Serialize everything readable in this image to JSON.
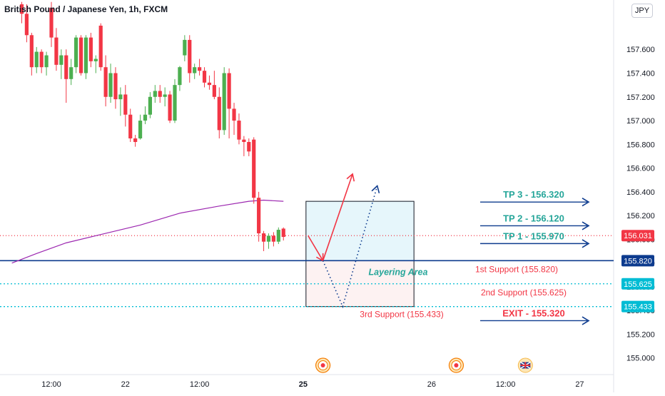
{
  "header": {
    "title": "British Pound / Japanese Yen, 1h, FXCM",
    "currency_badge": "JPY"
  },
  "chart_data": {
    "type": "candlestick",
    "symbol": "British Pound / Japanese Yen",
    "interval": "1h",
    "source": "FXCM",
    "y_axis": {
      "range": [
        154.86,
        157.92
      ],
      "ticks": [
        "157.600",
        "157.400",
        "157.200",
        "157.000",
        "156.800",
        "156.600",
        "156.400",
        "156.200",
        "156.000",
        "155.800",
        "155.600",
        "155.400",
        "155.200",
        "155.000"
      ]
    },
    "x_axis": {
      "ticks": [
        {
          "label": "12:00",
          "bar": 0
        },
        {
          "label": "22",
          "bar": 15
        },
        {
          "label": "12:00",
          "bar": 30
        },
        {
          "label": "25",
          "bar": 51
        },
        {
          "label": "26",
          "bar": 77
        },
        {
          "label": "12:00",
          "bar": 92
        },
        {
          "label": "27",
          "bar": 107
        }
      ]
    },
    "candles": [
      {
        "bar": -6,
        "o": 157.98,
        "h": 158.0,
        "l": 157.82,
        "c": 157.9
      },
      {
        "bar": -5,
        "o": 157.9,
        "h": 157.98,
        "l": 157.66,
        "c": 157.72
      },
      {
        "bar": -4,
        "o": 157.72,
        "h": 157.74,
        "l": 157.38,
        "c": 157.45
      },
      {
        "bar": -3,
        "o": 157.45,
        "h": 157.62,
        "l": 157.4,
        "c": 157.58
      },
      {
        "bar": -2,
        "o": 157.58,
        "h": 157.6,
        "l": 157.4,
        "c": 157.45
      },
      {
        "bar": -1,
        "o": 157.45,
        "h": 157.58,
        "l": 157.38,
        "c": 157.55
      },
      {
        "bar": 0,
        "o": 157.95,
        "h": 158.0,
        "l": 157.62,
        "c": 157.7
      },
      {
        "bar": 1,
        "o": 157.7,
        "h": 157.78,
        "l": 157.42,
        "c": 157.47
      },
      {
        "bar": 2,
        "o": 157.47,
        "h": 157.6,
        "l": 157.35,
        "c": 157.55
      },
      {
        "bar": 3,
        "o": 157.55,
        "h": 157.6,
        "l": 157.15,
        "c": 157.35
      },
      {
        "bar": 4,
        "o": 157.35,
        "h": 157.52,
        "l": 157.3,
        "c": 157.45
      },
      {
        "bar": 5,
        "o": 157.45,
        "h": 157.72,
        "l": 157.4,
        "c": 157.7
      },
      {
        "bar": 6,
        "o": 157.7,
        "h": 157.72,
        "l": 157.38,
        "c": 157.4
      },
      {
        "bar": 7,
        "o": 157.4,
        "h": 157.72,
        "l": 157.35,
        "c": 157.7
      },
      {
        "bar": 8,
        "o": 157.7,
        "h": 157.74,
        "l": 157.45,
        "c": 157.5
      },
      {
        "bar": 9,
        "o": 157.5,
        "h": 157.55,
        "l": 157.4,
        "c": 157.52
      },
      {
        "bar": 10,
        "o": 157.8,
        "h": 157.82,
        "l": 157.42,
        "c": 157.45
      },
      {
        "bar": 11,
        "o": 157.45,
        "h": 157.55,
        "l": 157.12,
        "c": 157.2
      },
      {
        "bar": 12,
        "o": 157.2,
        "h": 157.48,
        "l": 157.15,
        "c": 157.4
      },
      {
        "bar": 13,
        "o": 157.4,
        "h": 157.45,
        "l": 157.1,
        "c": 157.18
      },
      {
        "bar": 14,
        "o": 157.18,
        "h": 157.28,
        "l": 157.04,
        "c": 157.22
      },
      {
        "bar": 15,
        "o": 157.22,
        "h": 157.3,
        "l": 156.95,
        "c": 157.05
      },
      {
        "bar": 16,
        "o": 157.05,
        "h": 157.1,
        "l": 156.82,
        "c": 156.85
      },
      {
        "bar": 17,
        "o": 156.85,
        "h": 156.88,
        "l": 156.78,
        "c": 156.82
      },
      {
        "bar": 18,
        "o": 156.85,
        "h": 157.05,
        "l": 156.84,
        "c": 157.0
      },
      {
        "bar": 19,
        "o": 157.0,
        "h": 157.12,
        "l": 156.97,
        "c": 157.05
      },
      {
        "bar": 20,
        "o": 157.05,
        "h": 157.24,
        "l": 157.02,
        "c": 157.2
      },
      {
        "bar": 21,
        "o": 157.2,
        "h": 157.3,
        "l": 157.15,
        "c": 157.25
      },
      {
        "bar": 22,
        "o": 157.25,
        "h": 157.3,
        "l": 157.15,
        "c": 157.2
      },
      {
        "bar": 23,
        "o": 157.2,
        "h": 157.28,
        "l": 157.12,
        "c": 157.22
      },
      {
        "bar": 24,
        "o": 157.22,
        "h": 157.25,
        "l": 156.98,
        "c": 157.0
      },
      {
        "bar": 25,
        "o": 157.0,
        "h": 157.35,
        "l": 156.98,
        "c": 157.3
      },
      {
        "bar": 26,
        "o": 157.3,
        "h": 157.46,
        "l": 157.25,
        "c": 157.45
      },
      {
        "bar": 27,
        "o": 157.55,
        "h": 157.72,
        "l": 157.5,
        "c": 157.68
      },
      {
        "bar": 28,
        "o": 157.68,
        "h": 157.72,
        "l": 157.32,
        "c": 157.4
      },
      {
        "bar": 29,
        "o": 157.4,
        "h": 157.48,
        "l": 157.35,
        "c": 157.45
      },
      {
        "bar": 30,
        "o": 157.45,
        "h": 157.52,
        "l": 157.38,
        "c": 157.42
      },
      {
        "bar": 31,
        "o": 157.42,
        "h": 157.45,
        "l": 157.28,
        "c": 157.32
      },
      {
        "bar": 32,
        "o": 157.32,
        "h": 157.38,
        "l": 157.26,
        "c": 157.3
      },
      {
        "bar": 33,
        "o": 157.3,
        "h": 157.42,
        "l": 157.18,
        "c": 157.2
      },
      {
        "bar": 34,
        "o": 157.2,
        "h": 157.28,
        "l": 156.85,
        "c": 156.92
      },
      {
        "bar": 35,
        "o": 156.92,
        "h": 157.45,
        "l": 156.88,
        "c": 157.4
      },
      {
        "bar": 36,
        "o": 157.4,
        "h": 157.44,
        "l": 156.85,
        "c": 157.1
      },
      {
        "bar": 37,
        "o": 157.1,
        "h": 157.15,
        "l": 156.88,
        "c": 157.0
      },
      {
        "bar": 38,
        "o": 157.0,
        "h": 157.06,
        "l": 156.8,
        "c": 156.84
      },
      {
        "bar": 39,
        "o": 156.84,
        "h": 156.87,
        "l": 156.7,
        "c": 156.82
      },
      {
        "bar": 40,
        "o": 156.82,
        "h": 156.85,
        "l": 156.7,
        "c": 156.74
      },
      {
        "bar": 41,
        "o": 156.84,
        "h": 156.86,
        "l": 156.3,
        "c": 156.35
      },
      {
        "bar": 42,
        "o": 156.35,
        "h": 156.4,
        "l": 155.98,
        "c": 156.05
      },
      {
        "bar": 43,
        "o": 156.05,
        "h": 156.07,
        "l": 155.9,
        "c": 155.98
      },
      {
        "bar": 44,
        "o": 155.98,
        "h": 156.05,
        "l": 155.92,
        "c": 156.03
      },
      {
        "bar": 45,
        "o": 156.03,
        "h": 156.06,
        "l": 155.94,
        "c": 155.98
      },
      {
        "bar": 46,
        "o": 155.98,
        "h": 156.1,
        "l": 155.96,
        "c": 156.08
      },
      {
        "bar": 47,
        "o": 156.09,
        "h": 156.1,
        "l": 155.99,
        "c": 156.02
      }
    ],
    "moving_average": {
      "color": "#9c27b0",
      "points": [
        [
          -8,
          155.8
        ],
        [
          -3,
          155.88
        ],
        [
          3,
          155.97
        ],
        [
          10,
          156.04
        ],
        [
          18,
          156.12
        ],
        [
          26,
          156.22
        ],
        [
          34,
          156.28
        ],
        [
          40,
          156.32
        ],
        [
          43,
          156.33
        ],
        [
          47,
          156.32
        ]
      ]
    },
    "price_lines": [
      {
        "price": 156.031,
        "label": "156.031",
        "style": "dotted",
        "color": "#f23645"
      },
      {
        "price": 155.82,
        "label": "155.820",
        "style": "solid",
        "color": "#0d3b8e"
      },
      {
        "price": 155.625,
        "label": "155.625",
        "style": "dotted",
        "color": "#00bcd4"
      },
      {
        "price": 155.433,
        "label": "155.433",
        "style": "dotted",
        "color": "#00bcd4"
      }
    ],
    "zones": [
      {
        "name": "Layering Area",
        "from_bar": 52,
        "to_bar": 73,
        "top": 156.32,
        "mid": 155.82,
        "bottom": 155.433
      }
    ],
    "annotations": [
      {
        "text": "TP 3 - 156.320",
        "price": 156.32,
        "color": "#26a69a"
      },
      {
        "text": "TP 2 - 156.120",
        "price": 156.12,
        "color": "#26a69a"
      },
      {
        "text": "TP 1 - 155.970",
        "price": 155.97,
        "color": "#26a69a"
      },
      {
        "text": "1st Support (155.820)",
        "price": 155.82,
        "color": "#f23645"
      },
      {
        "text": "2nd Support (155.625)",
        "price": 155.625,
        "color": "#f23645"
      },
      {
        "text": "3rd Support (155.433)",
        "price": 155.433,
        "color": "#f23645"
      },
      {
        "text": "EXIT - 155.320",
        "price": 155.32,
        "color": "#f23645"
      },
      {
        "text": "Layering Area",
        "color": "#26a69a"
      }
    ],
    "arrows": {
      "tp_targets": [
        156.32,
        156.12,
        155.97,
        155.32
      ],
      "path_up": [
        [
          52,
          156.03
        ],
        [
          55,
          155.82
        ],
        [
          61,
          156.55
        ]
      ],
      "path_dotted": [
        [
          55,
          155.82
        ],
        [
          59,
          155.433
        ],
        [
          66,
          156.45
        ]
      ]
    },
    "event_markers": [
      {
        "type": "event-dot",
        "bar": 55
      },
      {
        "type": "event-dot",
        "bar": 82
      },
      {
        "type": "uk-flag",
        "bar": 96
      }
    ],
    "grid": false,
    "legend": "none"
  }
}
